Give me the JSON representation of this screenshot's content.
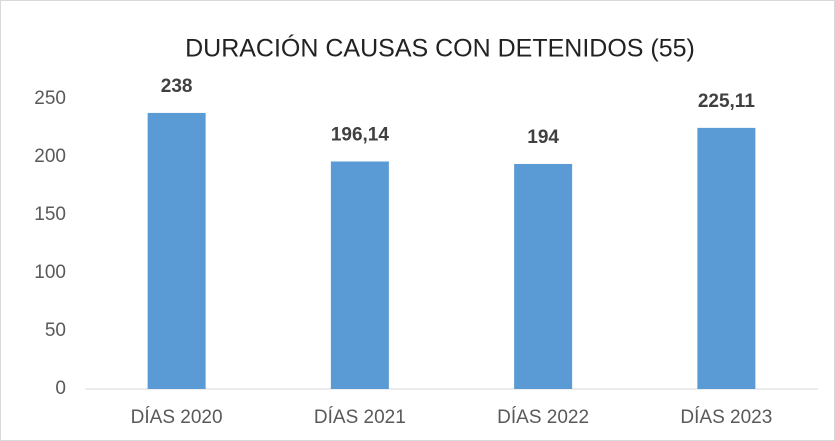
{
  "chart_data": {
    "type": "bar",
    "title": "DURACIÓN CAUSAS CON DETENIDOS (55)",
    "categories": [
      "DÍAS 2020",
      "DÍAS 2021",
      "DÍAS 2022",
      "DÍAS 2023"
    ],
    "values": [
      238,
      196.14,
      194,
      225.11
    ],
    "value_labels": [
      "238",
      "196,14",
      "194",
      "225,11"
    ],
    "color": "#5b9bd5",
    "ylim": [
      0,
      250
    ],
    "yticks": [
      0,
      50,
      100,
      150,
      200,
      250
    ],
    "grid": false
  }
}
